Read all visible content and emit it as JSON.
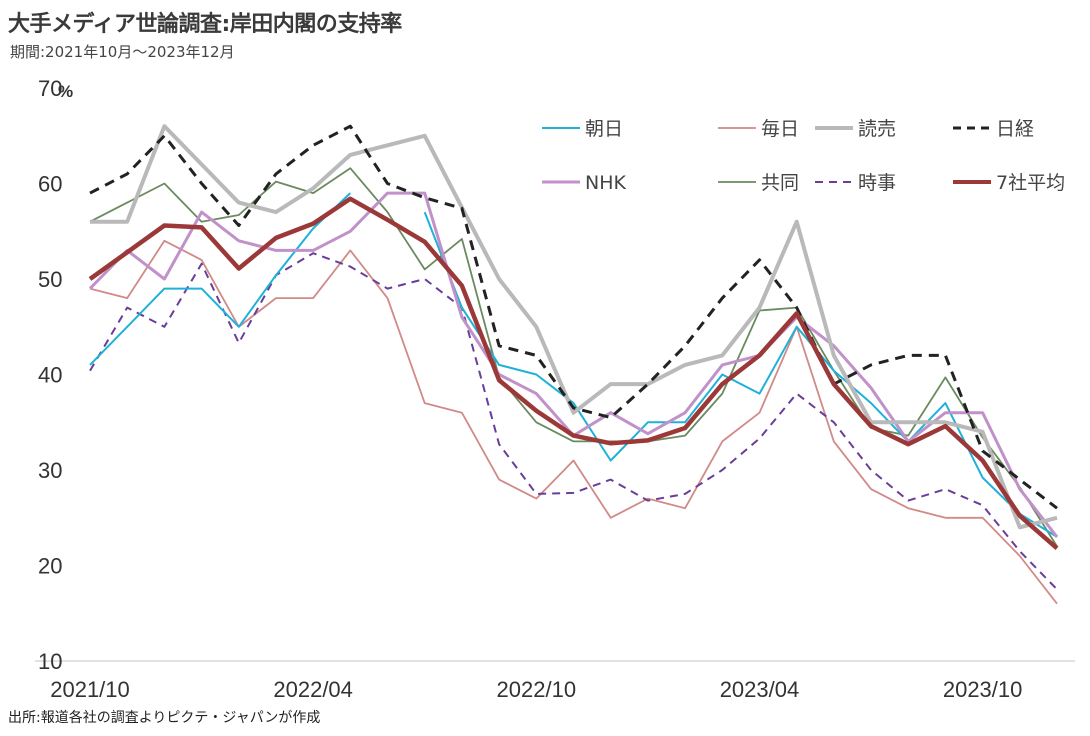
{
  "chart_data": {
    "type": "line",
    "title": "大手メディア世論調査:岸田内閣の支持率",
    "subtitle": "期間:2021年10月～2023年12月",
    "source": "出所:報道各社の調査よりピクテ・ジャパンが作成",
    "ylabel": "%",
    "ylim": [
      10,
      70
    ],
    "yticks": [
      "10",
      "20",
      "30",
      "40",
      "50",
      "60",
      "70"
    ],
    "xticks": [
      {
        "index": 0,
        "label": "2021/10"
      },
      {
        "index": 6,
        "label": "2022/04"
      },
      {
        "index": 12,
        "label": "2022/10"
      },
      {
        "index": 18,
        "label": "2023/04"
      },
      {
        "index": 24,
        "label": "2023/10"
      }
    ],
    "x_start": "2021/10",
    "x_end": "2023/12",
    "x_count": 27,
    "legend_placement": "top-right",
    "grid": false,
    "series": [
      {
        "name": "朝日",
        "color": "#1fb1d9",
        "dash": false,
        "values": [
          41,
          45,
          49,
          49,
          45,
          50.4,
          55.3,
          59,
          null,
          57,
          47,
          41,
          40,
          37,
          31,
          35,
          35,
          40,
          38,
          45,
          40.4,
          37,
          33,
          37,
          29.2,
          25.4,
          23
        ]
      },
      {
        "name": "毎日",
        "color": "#d08a88",
        "dash": false,
        "values": [
          49,
          48,
          54,
          52,
          45,
          48,
          48,
          53,
          48,
          37,
          36,
          29,
          27,
          31,
          25,
          27,
          26,
          33,
          36,
          45,
          33,
          28,
          26,
          25,
          25,
          21,
          16
        ]
      },
      {
        "name": "読売",
        "color": "#b9b9b9",
        "dash": false,
        "values": [
          56,
          56,
          66,
          62,
          58,
          57,
          59.5,
          63,
          64,
          65,
          57.5,
          50,
          45,
          36,
          39,
          39,
          41,
          42,
          47,
          56,
          42,
          35,
          35,
          35,
          34,
          24,
          25
        ]
      },
      {
        "name": "日経",
        "color": "#222222",
        "dash": true,
        "values": [
          59,
          61,
          65,
          60,
          55.6,
          61,
          64,
          66,
          60,
          58.5,
          57.4,
          43,
          42,
          36.5,
          35.5,
          39,
          43,
          48,
          52,
          47,
          39,
          41,
          42,
          42,
          32,
          29,
          26
        ]
      },
      {
        "name": "NHK",
        "color": "#c191ca",
        "dash": false,
        "values": [
          49,
          53,
          50,
          57,
          54,
          53,
          53,
          55,
          59,
          59,
          46,
          40,
          38,
          33.6,
          36,
          33.8,
          36,
          41,
          42,
          46,
          43,
          38.6,
          33,
          36,
          36,
          28,
          23
        ]
      },
      {
        "name": "共同",
        "color": "#6b8a5e",
        "dash": false,
        "values": [
          56,
          58,
          60,
          56,
          56.7,
          60.2,
          59,
          61.6,
          57,
          51,
          54.2,
          39.7,
          35,
          33,
          33,
          33,
          33.6,
          38,
          46.7,
          47,
          40.4,
          34.4,
          33.6,
          39.7,
          33.4,
          28.2,
          22
        ]
      },
      {
        "name": "時事",
        "color": "#6a3d9a",
        "dash": true,
        "values": [
          40.4,
          47,
          45,
          51.6,
          43.3,
          50.4,
          52.7,
          51.3,
          49,
          50,
          47,
          32.7,
          27.5,
          27.6,
          29,
          26.8,
          27.5,
          30,
          33.3,
          38,
          35,
          30,
          26.8,
          28,
          26.3,
          21.5,
          17.5
        ]
      },
      {
        "name": "7社平均",
        "color": "#9b3838",
        "dash": false,
        "values": [
          50,
          52.8,
          55.6,
          55.4,
          51.1,
          54.3,
          55.8,
          58.4,
          56.2,
          53.9,
          49.3,
          39.4,
          36.2,
          33.6,
          32.8,
          33.1,
          34.4,
          39,
          42,
          46.4,
          39,
          34.6,
          32.7,
          34.6,
          31,
          25.2,
          21.8
        ]
      }
    ]
  }
}
